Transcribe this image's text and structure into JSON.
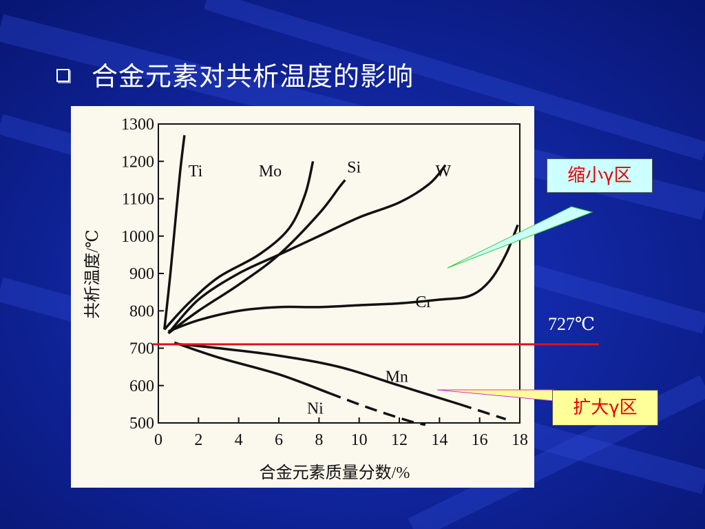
{
  "slide": {
    "title": "合金元素对共析温度的影响",
    "bullet_icon": "square-bullet-icon",
    "colors": {
      "background": "#0a1c8e",
      "panel": "#fbf8ee",
      "reference_line": "#e01020"
    }
  },
  "annotations": {
    "shrink_label": "缩小γ区",
    "expand_label": "扩大γ区",
    "reference_label": "727℃",
    "shrink_bg": "#ccffff",
    "expand_bg": "#ffff99"
  },
  "chart_data": {
    "type": "line",
    "title": "",
    "xlabel": "合金元素质量分数/%",
    "ylabel": "共析温度/℃",
    "xlim": [
      0,
      18
    ],
    "ylim": [
      500,
      1300
    ],
    "xticks": [
      0,
      2,
      4,
      6,
      8,
      10,
      12,
      14,
      16,
      18
    ],
    "yticks": [
      500,
      600,
      700,
      800,
      900,
      1000,
      1100,
      1200,
      1300
    ],
    "grid": false,
    "reference_line": {
      "y": 727,
      "label": "727℃"
    },
    "series": [
      {
        "name": "Ti",
        "x": [
          0.3,
          0.6,
          0.9,
          1.1,
          1.3
        ],
        "y": [
          750,
          900,
          1070,
          1180,
          1270
        ],
        "label_at": [
          1.5,
          1160
        ]
      },
      {
        "name": "Mo",
        "x": [
          0.3,
          1.5,
          3,
          5,
          6.5,
          7.3,
          7.7
        ],
        "y": [
          750,
          820,
          890,
          950,
          1020,
          1110,
          1200
        ],
        "label_at": [
          5.0,
          1160
        ]
      },
      {
        "name": "Si",
        "x": [
          0.5,
          2,
          4,
          6,
          8,
          9.0,
          9.3
        ],
        "y": [
          740,
          800,
          870,
          950,
          1060,
          1130,
          1150
        ],
        "label_at": [
          9.4,
          1170
        ]
      },
      {
        "name": "W",
        "x": [
          0.5,
          2,
          4,
          6,
          8,
          10,
          12,
          13.5,
          14.3
        ],
        "y": [
          740,
          830,
          900,
          950,
          1000,
          1050,
          1090,
          1140,
          1190
        ],
        "label_at": [
          13.8,
          1160
        ]
      },
      {
        "name": "Cr",
        "x": [
          0.5,
          2,
          4,
          6,
          8,
          10,
          12,
          14,
          15.5,
          16.5,
          17.3,
          17.9
        ],
        "y": [
          745,
          775,
          800,
          810,
          810,
          815,
          820,
          830,
          840,
          880,
          950,
          1030
        ],
        "label_at": [
          12.8,
          810
        ]
      },
      {
        "name": "Mn",
        "x": [
          0.8,
          3,
          6,
          9,
          12,
          15,
          17.3
        ],
        "y": [
          712,
          700,
          680,
          650,
          600,
          550,
          510
        ],
        "label_at": [
          11.3,
          610
        ],
        "dashed_from_x": 16.0
      },
      {
        "name": "Ni",
        "x": [
          0.8,
          3,
          6,
          8.5,
          10.5,
          12.5,
          13.3
        ],
        "y": [
          715,
          675,
          630,
          580,
          540,
          505,
          495
        ],
        "label_at": [
          7.4,
          525
        ],
        "dashed_from_x": 9.8
      }
    ]
  }
}
